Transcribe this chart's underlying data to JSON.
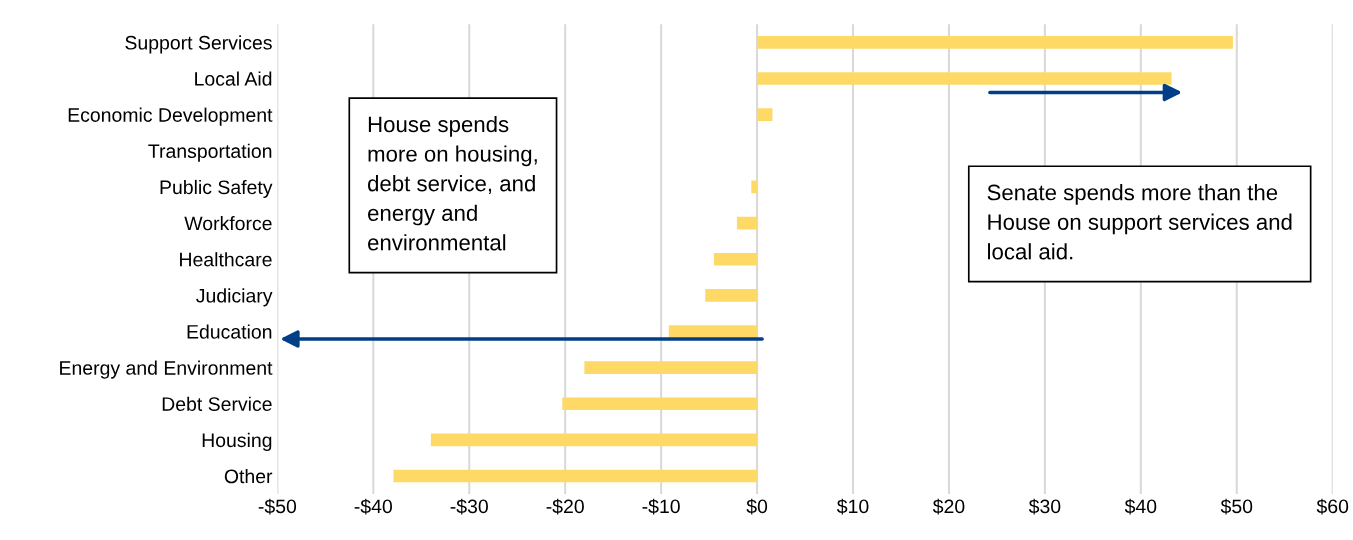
{
  "chart_data": {
    "type": "bar",
    "orientation": "horizontal",
    "categories": [
      "Support Services",
      "Local Aid",
      "Economic Development",
      "Transportation",
      "Public Safety",
      "Workforce",
      "Healthcare",
      "Judiciary",
      "Education",
      "Energy and Environment",
      "Debt Service",
      "Housing",
      "Other"
    ],
    "values": [
      49.6,
      43.2,
      1.6,
      0,
      -0.6,
      -2.1,
      -4.5,
      -5.4,
      -9.2,
      -18.0,
      -20.3,
      -34.0,
      -37.9
    ],
    "color": "#ffd966",
    "xlim": [
      -50,
      60
    ],
    "xticks": [
      {
        "value": -50,
        "label": "-$50"
      },
      {
        "value": -40,
        "label": "-$40"
      },
      {
        "value": -30,
        "label": "-$30"
      },
      {
        "value": -20,
        "label": "-$20"
      },
      {
        "value": -10,
        "label": "-$10"
      },
      {
        "value": 0,
        "label": "$0"
      },
      {
        "value": 10,
        "label": "$10"
      },
      {
        "value": 20,
        "label": "$20"
      },
      {
        "value": 30,
        "label": "$30"
      },
      {
        "value": 40,
        "label": "$40"
      },
      {
        "value": 50,
        "label": "$50"
      },
      {
        "value": 60,
        "label": "$60"
      }
    ],
    "grid": "x",
    "annotations": [
      "House spends\nmore on housing,\ndebt service, and\nenergy and\nenvironmental",
      "Senate spends more than the\nHouse on support services and\nlocal aid."
    ]
  }
}
